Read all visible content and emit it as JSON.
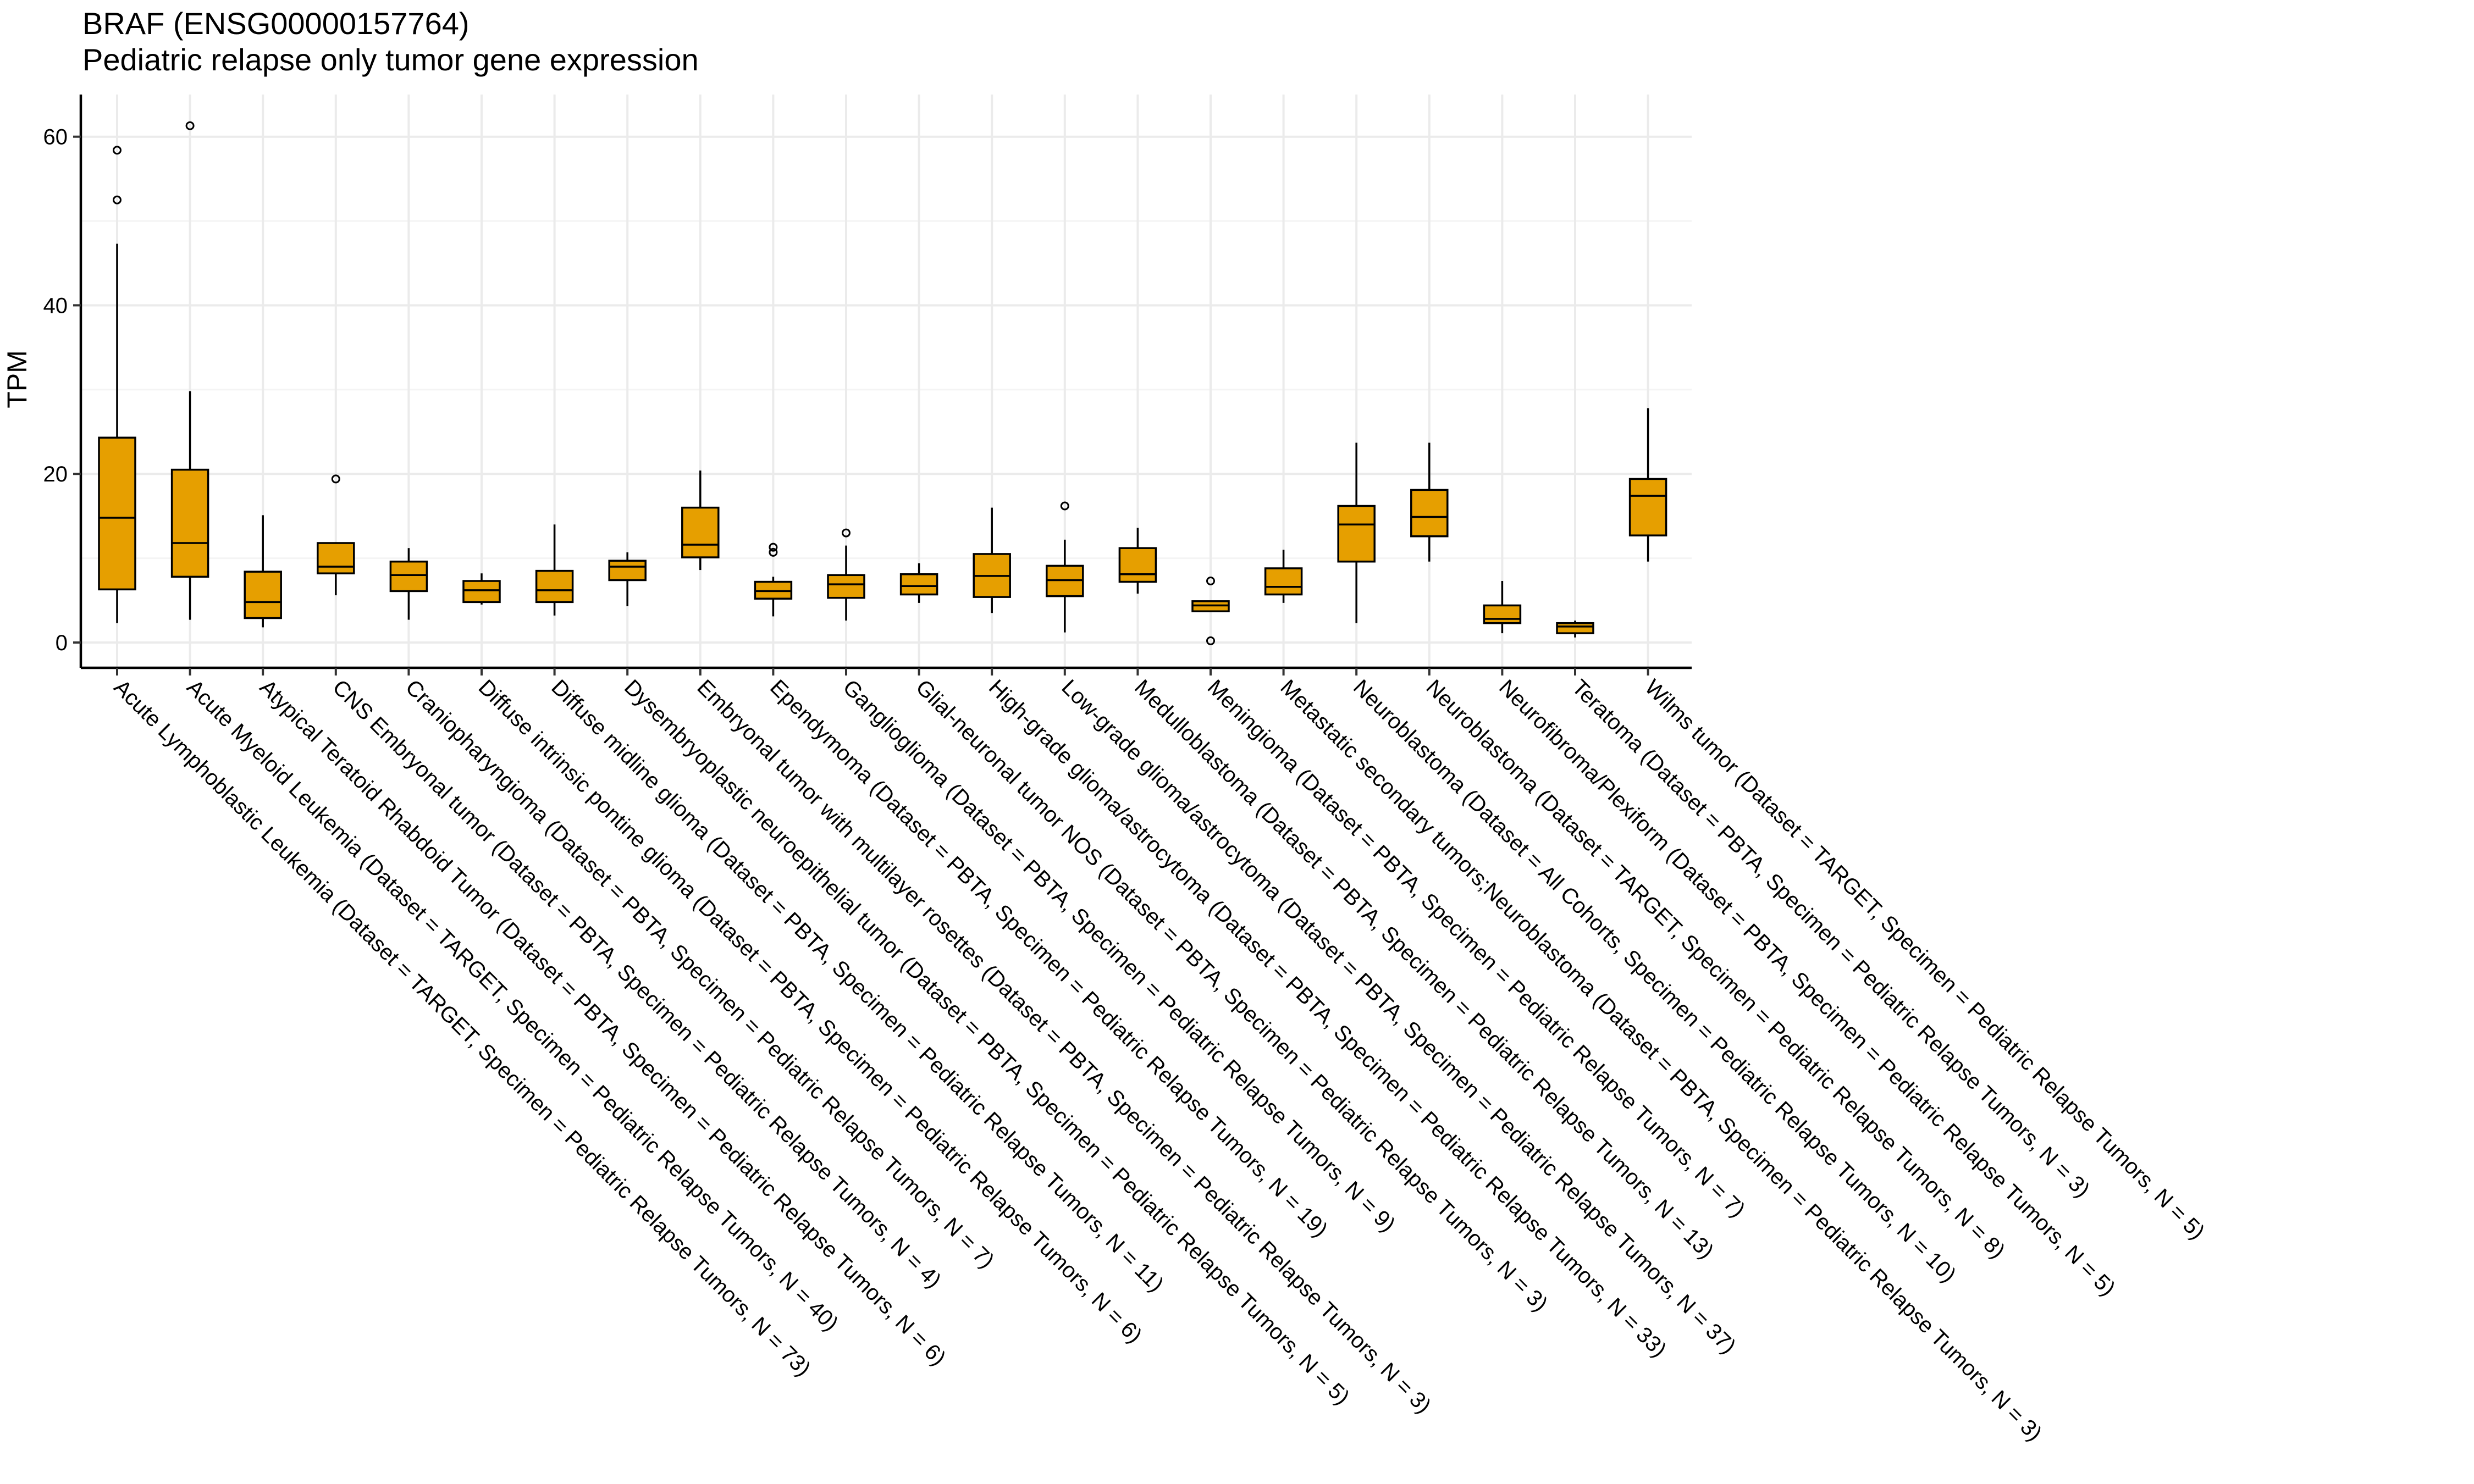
{
  "chart_data": {
    "type": "boxplot",
    "title": "BRAF (ENSG00000157764)",
    "subtitle": "Pediatric relapse only tumor gene expression",
    "xlabel": "",
    "ylabel": "TPM",
    "ylim": [
      -3,
      65
    ],
    "yticks": [
      0,
      20,
      40,
      60
    ],
    "grid": true,
    "legend": "none",
    "colors": {
      "box_fill": "#E69F00",
      "stroke": "#000000",
      "grid": "#EBEBEB"
    },
    "categories": [
      "Acute Lymphoblastic Leukemia  (Dataset = TARGET, Specimen = Pediatric Relapse Tumors, N = 73)",
      "Acute Myeloid Leukemia  (Dataset = TARGET, Specimen = Pediatric Relapse Tumors, N = 40)",
      "Atypical Teratoid Rhabdoid Tumor  (Dataset = PBTA, Specimen = Pediatric Relapse Tumors, N = 6)",
      "CNS Embryonal tumor  (Dataset = PBTA, Specimen = Pediatric Relapse Tumors, N = 4)",
      "Craniopharyngioma  (Dataset = PBTA, Specimen = Pediatric Relapse Tumors, N = 7)",
      "Diffuse intrinsic pontine glioma  (Dataset = PBTA, Specimen = Pediatric Relapse Tumors, N = 6)",
      "Diffuse midline glioma  (Dataset = PBTA, Specimen = Pediatric Relapse Tumors, N = 11)",
      "Dysembryoplastic neuroepithelial tumor  (Dataset = PBTA, Specimen = Pediatric Relapse Tumors, N = 5)",
      "Embryonal tumor with multilayer rosettes  (Dataset = PBTA, Specimen = Pediatric Relapse Tumors, N = 3)",
      "Ependymoma  (Dataset = PBTA, Specimen = Pediatric Relapse Tumors, N = 19)",
      "Ganglioglioma  (Dataset = PBTA, Specimen = Pediatric Relapse Tumors, N = 9)",
      "Glial-neuronal tumor NOS  (Dataset = PBTA, Specimen = Pediatric Relapse Tumors, N = 3)",
      "High-grade glioma/astrocytoma  (Dataset = PBTA, Specimen = Pediatric Relapse Tumors, N = 33)",
      "Low-grade glioma/astrocytoma  (Dataset = PBTA, Specimen = Pediatric Relapse Tumors, N = 37)",
      "Medulloblastoma  (Dataset = PBTA, Specimen = Pediatric Relapse Tumors, N = 13)",
      "Meningioma  (Dataset = PBTA, Specimen = Pediatric Relapse Tumors, N = 7)",
      "Metastatic secondary tumors;Neuroblastoma  (Dataset = PBTA, Specimen = Pediatric Relapse Tumors, N = 3)",
      "Neuroblastoma  (Dataset = All Cohorts, Specimen = Pediatric Relapse Tumors, N = 10)",
      "Neuroblastoma  (Dataset = TARGET, Specimen = Pediatric Relapse Tumors, N = 8)",
      "Neurofibroma/Plexiform  (Dataset = PBTA, Specimen = Pediatric Relapse Tumors, N = 5)",
      "Teratoma  (Dataset = PBTA, Specimen = Pediatric Relapse Tumors, N = 3)",
      "Wilms tumor  (Dataset = TARGET, Specimen = Pediatric Relapse Tumors, N = 5)"
    ],
    "boxes": [
      {
        "whislo": 2.3,
        "q1": 6.3,
        "median": 14.8,
        "q3": 24.3,
        "whishi": 47.3,
        "outliers": [
          52.5,
          58.4
        ]
      },
      {
        "whislo": 2.7,
        "q1": 7.8,
        "median": 11.8,
        "q3": 20.5,
        "whishi": 29.8,
        "outliers": [
          61.3
        ]
      },
      {
        "whislo": 1.8,
        "q1": 2.9,
        "median": 4.8,
        "q3": 8.4,
        "whishi": 15.1,
        "outliers": []
      },
      {
        "whislo": 5.6,
        "q1": 8.2,
        "median": 9.0,
        "q3": 11.8,
        "whishi": 11.8,
        "outliers": [
          19.4
        ]
      },
      {
        "whislo": 2.7,
        "q1": 6.1,
        "median": 8.0,
        "q3": 9.6,
        "whishi": 11.2,
        "outliers": []
      },
      {
        "whislo": 4.5,
        "q1": 4.8,
        "median": 6.2,
        "q3": 7.3,
        "whishi": 8.2,
        "outliers": []
      },
      {
        "whislo": 3.2,
        "q1": 4.8,
        "median": 6.2,
        "q3": 8.5,
        "whishi": 14.0,
        "outliers": []
      },
      {
        "whislo": 4.3,
        "q1": 7.4,
        "median": 9.0,
        "q3": 9.7,
        "whishi": 10.7,
        "outliers": []
      },
      {
        "whislo": 8.6,
        "q1": 10.1,
        "median": 11.6,
        "q3": 16.0,
        "whishi": 20.4,
        "outliers": []
      },
      {
        "whislo": 3.1,
        "q1": 5.2,
        "median": 6.1,
        "q3": 7.2,
        "whishi": 7.8,
        "outliers": [
          10.7,
          11.3
        ]
      },
      {
        "whislo": 2.6,
        "q1": 5.3,
        "median": 6.9,
        "q3": 8.0,
        "whishi": 11.5,
        "outliers": [
          13.0
        ]
      },
      {
        "whislo": 4.7,
        "q1": 5.7,
        "median": 6.7,
        "q3": 8.1,
        "whishi": 9.4,
        "outliers": []
      },
      {
        "whislo": 3.5,
        "q1": 5.4,
        "median": 7.9,
        "q3": 10.5,
        "whishi": 16.0,
        "outliers": []
      },
      {
        "whislo": 1.2,
        "q1": 5.5,
        "median": 7.4,
        "q3": 9.1,
        "whishi": 12.2,
        "outliers": [
          16.2
        ]
      },
      {
        "whislo": 5.8,
        "q1": 7.2,
        "median": 8.1,
        "q3": 11.2,
        "whishi": 13.6,
        "outliers": []
      },
      {
        "whislo": 3.6,
        "q1": 3.7,
        "median": 4.4,
        "q3": 4.9,
        "whishi": 4.9,
        "outliers": [
          7.3,
          0.2
        ]
      },
      {
        "whislo": 4.7,
        "q1": 5.7,
        "median": 6.6,
        "q3": 8.8,
        "whishi": 11.0,
        "outliers": []
      },
      {
        "whislo": 2.3,
        "q1": 9.6,
        "median": 14.0,
        "q3": 16.2,
        "whishi": 23.7,
        "outliers": []
      },
      {
        "whislo": 9.6,
        "q1": 12.6,
        "median": 14.9,
        "q3": 18.1,
        "whishi": 23.7,
        "outliers": []
      },
      {
        "whislo": 1.1,
        "q1": 2.3,
        "median": 2.8,
        "q3": 4.4,
        "whishi": 7.3,
        "outliers": []
      },
      {
        "whislo": 0.6,
        "q1": 1.1,
        "median": 1.9,
        "q3": 2.3,
        "whishi": 2.6,
        "outliers": []
      },
      {
        "whislo": 9.6,
        "q1": 12.7,
        "median": 17.4,
        "q3": 19.4,
        "whishi": 27.8,
        "outliers": []
      }
    ]
  }
}
